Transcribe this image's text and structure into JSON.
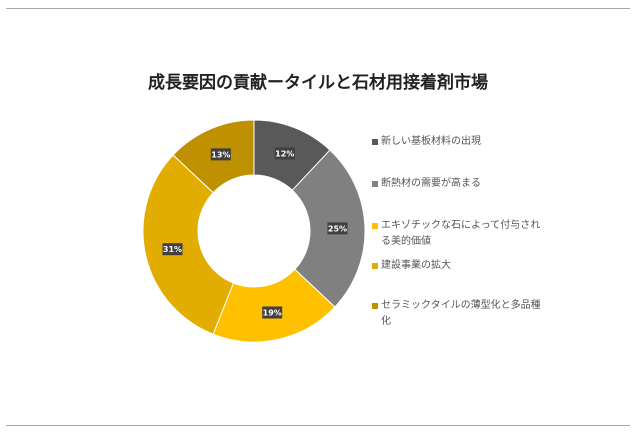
{
  "chart_data": {
    "type": "pie",
    "donut": true,
    "title": "成長要因の貢献ータイルと石材用接着剤市場",
    "categories": [
      "新しい基板材料の出現",
      "断熱材の需要が高まる",
      "エキゾチックな石によって付与される美的価値",
      "建設事業の拡大",
      "セラミックタイルの薄型化と多品種化"
    ],
    "values": [
      12,
      25,
      19,
      31,
      13
    ],
    "labels": [
      "12%",
      "25%",
      "19%",
      "31%",
      "13%"
    ],
    "colors": [
      "#595959",
      "#808080",
      "#FFC000",
      "#E3AC00",
      "#BF9000"
    ],
    "legend_position": "right"
  }
}
